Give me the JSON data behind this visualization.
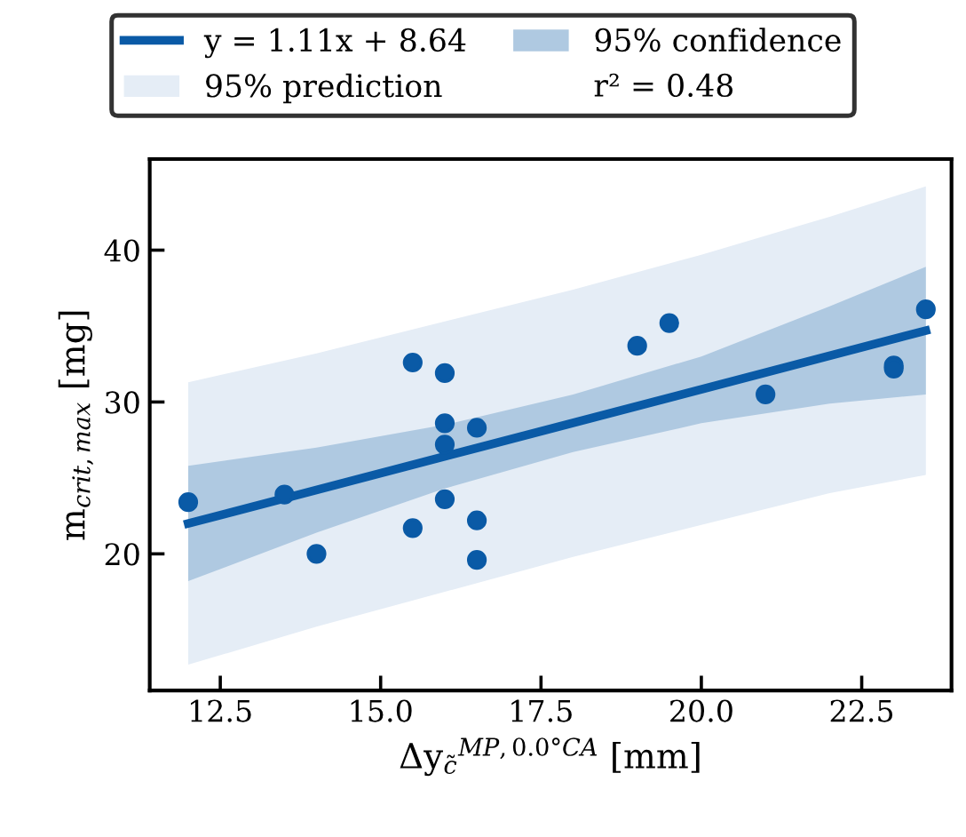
{
  "chart_data": {
    "type": "scatter",
    "xlabel": "Δy$_{c̃}$$^{MP,0.0°CA}$ [mm]",
    "ylabel": "m$_{crit,max}$ [mg]",
    "xlim": [
      11.4,
      23.9
    ],
    "ylim": [
      11,
      46
    ],
    "xticks": [
      12.5,
      {
        "value": 15,
        "label": "15.0"
      },
      17.5,
      {
        "value": 20,
        "label": "20.0"
      },
      22.5
    ],
    "yticks": [
      20,
      30,
      40
    ],
    "grid": false,
    "legend": "top",
    "marker": "circle",
    "annotations": [
      "r² = 0.48"
    ],
    "series": [
      {
        "type": "line",
        "name": "95% prediction",
        "color": "#e5edf6",
        "marker": "none",
        "x": [
          12,
          14,
          16,
          18,
          20,
          22,
          23.5
        ],
        "values": [
          null,
          null,
          null,
          null,
          null,
          null,
          null
        ],
        "lower": [
          12.7,
          15.2,
          17.5,
          19.8,
          21.9,
          24.0,
          25.2
        ],
        "upper": [
          31.3,
          33.2,
          35.3,
          37.4,
          39.7,
          42.2,
          44.2
        ]
      },
      {
        "type": "line",
        "name": "95% confidence",
        "color": "#afc9e1",
        "marker": "none",
        "x": [
          12,
          14,
          16,
          18,
          20,
          22,
          23.5
        ],
        "values": [
          null,
          null,
          null,
          null,
          null,
          null,
          null
        ],
        "lower": [
          18.2,
          21.4,
          24.3,
          26.7,
          28.6,
          29.9,
          30.5
        ],
        "upper": [
          25.8,
          27.0,
          28.5,
          30.5,
          33.0,
          36.3,
          38.9
        ]
      },
      {
        "type": "line",
        "name": "y = 1.11x + 8.64",
        "color": "#0a5aa6",
        "marker": "none",
        "line_style": "solid",
        "x": [
          12,
          23.5
        ],
        "values": [
          22.0,
          34.7
        ]
      },
      {
        "color": "#0a5aa6",
        "x": [
          12.0,
          13.5,
          14.0,
          15.5,
          15.5,
          16.0,
          16.0,
          16.0,
          16.0,
          16.5,
          16.5,
          16.5,
          19.0,
          19.5,
          21.0,
          23.0,
          23.0,
          23.5
        ],
        "values": [
          23.4,
          23.9,
          20.0,
          32.6,
          21.7,
          31.9,
          28.6,
          27.2,
          23.6,
          28.3,
          22.2,
          19.6,
          33.7,
          35.2,
          30.5,
          32.4,
          32.2,
          36.1
        ]
      }
    ]
  }
}
